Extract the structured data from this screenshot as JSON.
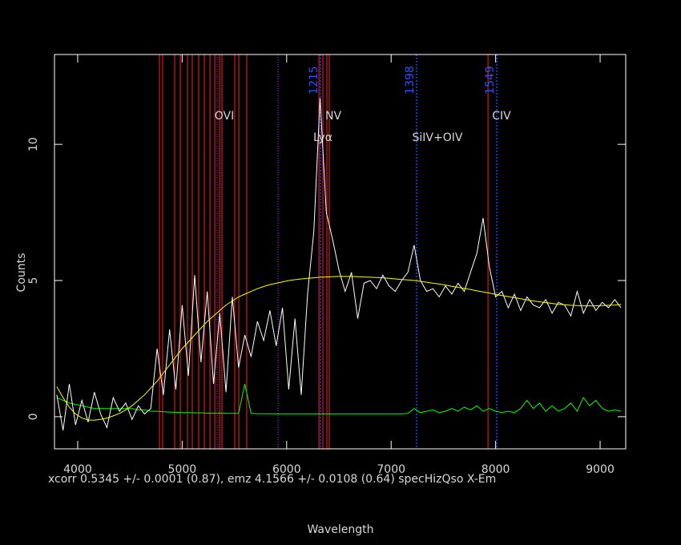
{
  "chart_data": {
    "type": "line",
    "x_label": "Wavelength",
    "y_label": "Counts",
    "caption": "xcorr  0.5345 +/- 0.0001 (0.87), emz  4.1566 +/- 0.0108 (0.64) specHizQso X-Em",
    "annotations": [
      "OVI",
      "NV",
      "Lyα",
      "SiIV+OIV",
      "CIV",
      "1215",
      "1398",
      "1549"
    ],
    "xlim": [
      3778,
      9245
    ],
    "ylim": [
      -1.18,
      13.3
    ],
    "xticks": [
      4000,
      5000,
      6000,
      7000,
      8000,
      9000
    ],
    "yticks": [
      0,
      5,
      10
    ],
    "x": [
      3800,
      3860,
      3920,
      3980,
      4040,
      4100,
      4160,
      4220,
      4280,
      4340,
      4400,
      4460,
      4520,
      4580,
      4640,
      4700,
      4760,
      4820,
      4880,
      4940,
      5000,
      5060,
      5120,
      5180,
      5240,
      5300,
      5360,
      5420,
      5480,
      5540,
      5600,
      5660,
      5720,
      5780,
      5840,
      5900,
      5960,
      6020,
      6080,
      6140,
      6200,
      6260,
      6320,
      6380,
      6440,
      6500,
      6560,
      6620,
      6680,
      6740,
      6800,
      6860,
      6920,
      6980,
      7040,
      7100,
      7160,
      7220,
      7280,
      7340,
      7400,
      7460,
      7520,
      7580,
      7640,
      7700,
      7760,
      7820,
      7880,
      7940,
      8000,
      8060,
      8120,
      8180,
      8240,
      8300,
      8360,
      8420,
      8480,
      8540,
      8600,
      8660,
      8720,
      8780,
      8840,
      8900,
      8960,
      9020,
      9080,
      9140,
      9200
    ],
    "series": [
      {
        "color": "#ffffff",
        "values": [
          0.8,
          -0.5,
          1.2,
          -0.3,
          0.6,
          -0.2,
          0.9,
          0.1,
          -0.4,
          0.7,
          0.2,
          0.5,
          -0.1,
          0.4,
          0.1,
          0.3,
          2.5,
          0.8,
          3.2,
          1.0,
          4.1,
          1.5,
          5.2,
          2.0,
          4.6,
          1.2,
          3.8,
          0.9,
          4.4,
          1.8,
          3.0,
          2.2,
          3.5,
          2.8,
          3.9,
          2.6,
          4.0,
          1.0,
          3.6,
          0.8,
          4.5,
          6.8,
          11.7,
          7.5,
          6.5,
          5.4,
          4.6,
          5.3,
          3.6,
          4.9,
          5.0,
          4.7,
          5.2,
          4.8,
          4.6,
          5.0,
          5.3,
          6.3,
          5.0,
          4.6,
          4.7,
          4.4,
          4.8,
          4.5,
          4.9,
          4.6,
          5.3,
          6.0,
          7.3,
          5.5,
          4.4,
          4.6,
          4.0,
          4.5,
          3.9,
          4.4,
          4.1,
          4.0,
          4.3,
          3.8,
          4.2,
          4.1,
          3.7,
          4.6,
          3.8,
          4.3,
          3.9,
          4.2,
          4.0,
          4.3,
          4.0
        ]
      },
      {
        "color": "#ffff00",
        "values": [
          1.1,
          0.7,
          0.35,
          0.1,
          -0.05,
          -0.12,
          -0.13,
          -0.1,
          -0.05,
          0.03,
          0.12,
          0.25,
          0.4,
          0.6,
          0.8,
          1.05,
          1.3,
          1.6,
          1.9,
          2.2,
          2.5,
          2.75,
          3.0,
          3.25,
          3.5,
          3.7,
          3.9,
          4.1,
          4.25,
          4.4,
          4.5,
          4.6,
          4.7,
          4.78,
          4.85,
          4.9,
          4.95,
          5.0,
          5.03,
          5.06,
          5.08,
          5.1,
          5.12,
          5.13,
          5.14,
          5.15,
          5.15,
          5.15,
          5.14,
          5.13,
          5.12,
          5.11,
          5.1,
          5.08,
          5.06,
          5.04,
          5.02,
          5.0,
          4.97,
          4.94,
          4.9,
          4.87,
          4.83,
          4.79,
          4.75,
          4.71,
          4.67,
          4.62,
          4.58,
          4.54,
          4.49,
          4.45,
          4.41,
          4.37,
          4.33,
          4.29,
          4.25,
          4.22,
          4.19,
          4.16,
          4.13,
          4.11,
          4.09,
          4.08,
          4.07,
          4.07,
          4.07,
          4.08,
          4.09,
          4.1,
          4.12
        ]
      },
      {
        "color": "#00ff00",
        "values": [
          0.7,
          0.6,
          0.5,
          0.45,
          0.4,
          0.35,
          0.3,
          0.3,
          0.3,
          0.3,
          0.3,
          0.3,
          0.3,
          0.25,
          0.25,
          0.2,
          0.2,
          0.18,
          0.17,
          0.16,
          0.15,
          0.15,
          0.14,
          0.14,
          0.13,
          0.13,
          0.13,
          0.12,
          0.12,
          0.12,
          1.2,
          0.12,
          0.11,
          0.11,
          0.11,
          0.1,
          0.1,
          0.1,
          0.1,
          0.1,
          0.1,
          0.1,
          0.1,
          0.1,
          0.1,
          0.1,
          0.1,
          0.1,
          0.1,
          0.1,
          0.1,
          0.1,
          0.1,
          0.1,
          0.1,
          0.1,
          0.12,
          0.3,
          0.15,
          0.2,
          0.25,
          0.15,
          0.2,
          0.3,
          0.2,
          0.35,
          0.25,
          0.4,
          0.2,
          0.3,
          0.2,
          0.15,
          0.2,
          0.15,
          0.3,
          0.6,
          0.3,
          0.5,
          0.2,
          0.4,
          0.2,
          0.3,
          0.5,
          0.2,
          0.7,
          0.4,
          0.6,
          0.3,
          0.2,
          0.25,
          0.2
        ]
      }
    ],
    "red_lines": [
      4783,
      4813,
      4928,
      4982,
      5051,
      5097,
      5158,
      5212,
      5266,
      5312,
      5358,
      5381,
      5503,
      5542,
      5618,
      6309,
      6347,
      6385,
      6408,
      7927
    ],
    "blue_lines": [
      6324,
      7244,
      8011
    ],
    "magenta_lines": [
      5335,
      5918
    ]
  }
}
